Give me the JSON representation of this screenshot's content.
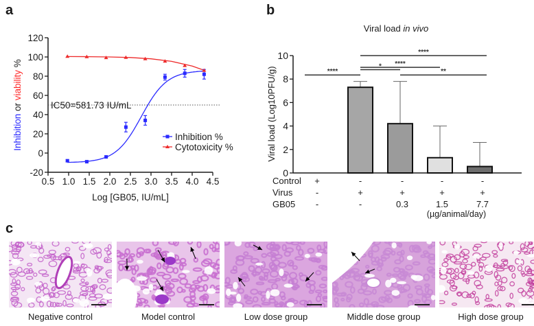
{
  "panels": {
    "a": "a",
    "b": "b",
    "c": "c"
  },
  "chart_data": [
    {
      "id": "a",
      "type": "scatter",
      "title": "",
      "xlabel": "Log [GB05, IU/mL]",
      "ylabel_parts": [
        {
          "text": "Inhibition",
          "color": "#2a2aff"
        },
        {
          "text": " or ",
          "color": "#1a1a1a"
        },
        {
          "text": "viability",
          "color": "#ff2a2a"
        },
        {
          "text": " %",
          "color": "#1a1a1a"
        }
      ],
      "xlim": [
        0.5,
        4.5
      ],
      "ylim": [
        -20,
        120
      ],
      "xticks": [
        "0.5",
        "1.0",
        "1.5",
        "2.0",
        "2.5",
        "3.0",
        "3.5",
        "4.0",
        "4.5"
      ],
      "xtick_values": [
        0.5,
        1.0,
        1.5,
        2.0,
        2.5,
        3.0,
        3.5,
        4.0,
        4.5
      ],
      "yticks": [
        "-20",
        "0",
        "20",
        "40",
        "60",
        "80",
        "100",
        "120"
      ],
      "ytick_values": [
        -20,
        0,
        20,
        40,
        60,
        80,
        100,
        120
      ],
      "reference_line": {
        "y": 50,
        "style": "dotted"
      },
      "annotation": "IC50=581.73 IU/mL",
      "legend_position": "lower-right",
      "series": [
        {
          "name": "Inhibition %",
          "color": "#2a2aff",
          "marker": "square",
          "x": [
            0.97,
            1.44,
            1.91,
            2.39,
            2.86,
            3.34,
            3.82,
            4.29
          ],
          "y": [
            -8,
            -9,
            -4,
            27,
            34,
            79,
            83,
            82
          ],
          "err": [
            1,
            1,
            1,
            5,
            5,
            3,
            4,
            5
          ],
          "fit": {
            "bottom": -10,
            "top": 86,
            "logIC50": 2.765,
            "hill": 1.4
          }
        },
        {
          "name": "Cytotoxicity %",
          "color": "#ee2a2a",
          "marker": "triangle",
          "x": [
            0.97,
            1.44,
            1.91,
            2.39,
            2.86,
            3.34,
            3.82,
            4.29
          ],
          "y": [
            100.5,
            100.2,
            99.2,
            99.5,
            98,
            95.5,
            91,
            86
          ],
          "err": [
            0,
            0,
            0,
            0,
            0,
            0,
            0,
            0
          ],
          "fit_points": [
            [
              0.97,
              100.4
            ],
            [
              1.5,
              100.3
            ],
            [
              2.0,
              100.0
            ],
            [
              2.5,
              99.4
            ],
            [
              3.0,
              98.1
            ],
            [
              3.5,
              95.4
            ],
            [
              4.0,
              90.5
            ],
            [
              4.3,
              86
            ]
          ]
        }
      ]
    },
    {
      "id": "b",
      "type": "bar",
      "title_plain": "Viral load ",
      "title_italic": "in vivo",
      "ylabel": "Viral load (Log10PFU/g)",
      "ylim": [
        0,
        10
      ],
      "yticks": [
        "0",
        "2",
        "4",
        "6",
        "8",
        "10"
      ],
      "ytick_values": [
        0,
        2,
        4,
        6,
        8,
        10
      ],
      "categories": [
        "Control",
        "Virus",
        "GB05 0.3",
        "GB05 1.5",
        "GB05 7.7"
      ],
      "values": [
        0,
        7.3,
        4.2,
        1.3,
        0.55
      ],
      "err_upper": [
        0,
        7.8,
        7.8,
        4.0,
        2.6
      ],
      "bar_colors": [
        "#ffffff",
        "#a6a6a6",
        "#9b9b9b",
        "#e0e0e0",
        "#6e6e6e"
      ],
      "significance": [
        {
          "from": 0,
          "to": 1,
          "y": 8.35,
          "label": "****"
        },
        {
          "from": 1,
          "to": 4,
          "y": 10.0,
          "label": "****"
        },
        {
          "from": 1,
          "to": 3,
          "y": 9.0,
          "label": "****"
        },
        {
          "from": 1,
          "to": 2,
          "y": 8.8,
          "label": "*"
        },
        {
          "from": 2,
          "to": 4,
          "y": 8.35,
          "label": "**"
        }
      ],
      "condition_table": {
        "rows": [
          {
            "label": "Control",
            "cells": [
              "+",
              "-",
              "-",
              "-",
              "-"
            ]
          },
          {
            "label": "Virus",
            "cells": [
              "-",
              "+",
              "+",
              "+",
              "+"
            ]
          },
          {
            "label": "GB05",
            "cells": [
              "-",
              "-",
              "0.3",
              "1.5",
              "7.7"
            ]
          }
        ],
        "unit": "(µg/animal/day)"
      }
    }
  ],
  "histology": [
    {
      "caption": "Negative control",
      "arrows": 0
    },
    {
      "caption": "Model control",
      "arrows": 4
    },
    {
      "caption": "Low dose group",
      "arrows": 3
    },
    {
      "caption": "Middle dose group",
      "arrows": 2
    },
    {
      "caption": "High dose group",
      "arrows": 0
    }
  ]
}
